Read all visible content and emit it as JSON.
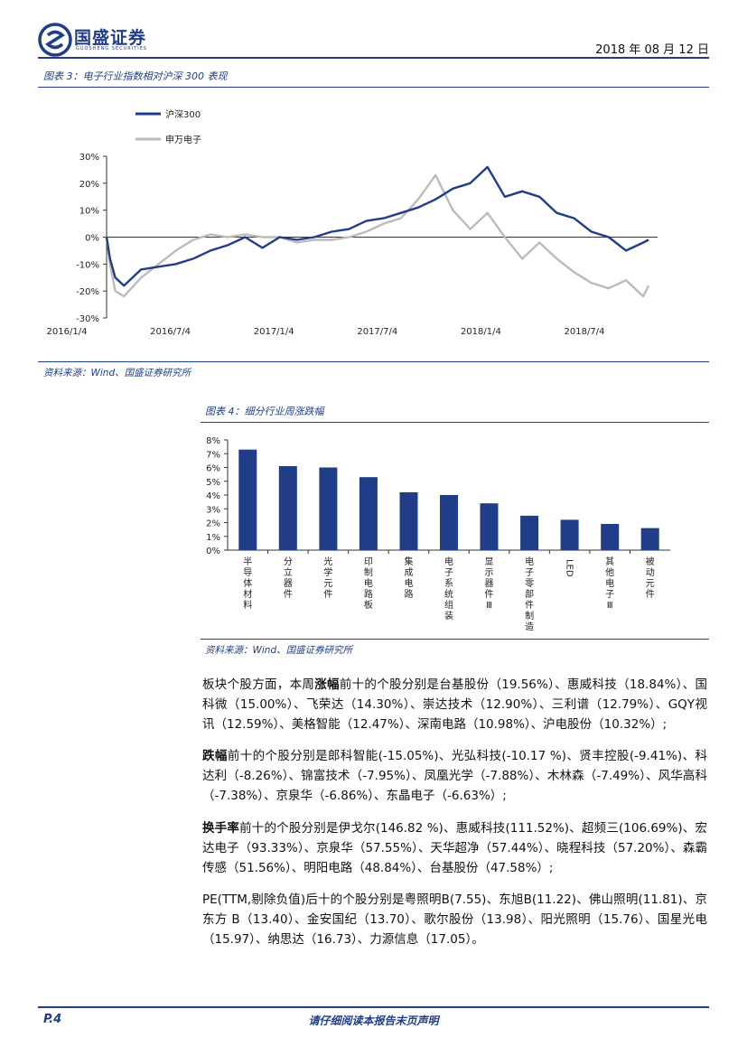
{
  "header": {
    "brand": "国盛证券",
    "brand_sub": "GUOSHENG SECURITIES",
    "date": "2018 年 08 月 12 日"
  },
  "figure3": {
    "caption": "图表 3：电子行业指数相对沪深 300 表现",
    "source": "资料来源：Wind、国盛证券研究所"
  },
  "figure4": {
    "caption": "图表 4：细分行业周涨跌幅",
    "source": "资料来源：Wind、国盛证券研究所"
  },
  "chart_data": [
    {
      "type": "line",
      "title": "",
      "legend": [
        "沪深300",
        "申万电子"
      ],
      "legend_position": "top-left",
      "x_ticks": [
        "2016/1/4",
        "2016/7/4",
        "2017/1/4",
        "2017/7/4",
        "2018/1/4",
        "2018/7/4"
      ],
      "y_ticks": [
        "30%",
        "20%",
        "10%",
        "0%",
        "-10%",
        "-20%",
        "-30%"
      ],
      "ylim": [
        -30,
        30
      ],
      "series": [
        {
          "name": "沪深300",
          "color": "#1f3d88",
          "x": [
            0,
            0.2,
            0.5,
            1,
            2,
            3,
            4,
            5,
            6,
            7,
            8,
            9,
            10,
            11,
            12,
            13,
            14,
            15,
            16,
            17,
            18,
            19,
            20,
            21,
            22,
            23,
            24,
            25,
            26,
            27,
            28,
            29,
            30,
            31,
            31.3
          ],
          "values": [
            0,
            -8,
            -15,
            -18,
            -12,
            -11,
            -10,
            -8,
            -5,
            -3,
            0,
            -4,
            0,
            -1,
            0,
            2,
            3,
            6,
            7,
            9,
            11,
            14,
            18,
            20,
            26,
            15,
            17,
            15,
            9,
            7,
            2,
            0,
            -5,
            -2,
            -1
          ]
        },
        {
          "name": "申万电子",
          "color": "#bbbbbb",
          "x": [
            0,
            0.2,
            0.5,
            1,
            2,
            3,
            4,
            5,
            6,
            7,
            8,
            9,
            10,
            11,
            12,
            13,
            14,
            15,
            16,
            17,
            18,
            19,
            20,
            21,
            22,
            23,
            24,
            25,
            26,
            27,
            28,
            29,
            30,
            31,
            31.3
          ],
          "values": [
            0,
            -10,
            -20,
            -22,
            -15,
            -10,
            -5,
            -1,
            1,
            0,
            1,
            0,
            0,
            -2,
            -1,
            -1,
            0,
            2,
            5,
            7,
            14,
            23,
            10,
            3,
            9,
            0,
            -8,
            -2,
            -8,
            -13,
            -17,
            -19,
            -16,
            -22,
            -18
          ]
        }
      ]
    },
    {
      "type": "bar",
      "title": "",
      "categories": [
        "半导体材料",
        "分立器件",
        "光学元件",
        "印制电路板",
        "集成电路",
        "电子系统组装",
        "显示器件Ⅲ",
        "电子零部件制造",
        "LED",
        "其他电子Ⅲ",
        "被动元件"
      ],
      "values": [
        7.3,
        6.1,
        6.0,
        5.3,
        4.2,
        4.0,
        3.4,
        2.5,
        2.2,
        1.9,
        1.6
      ],
      "y_ticks": [
        "8%",
        "7%",
        "6%",
        "5%",
        "4%",
        "3%",
        "2%",
        "1%",
        "0%"
      ],
      "ylim": [
        0,
        8
      ],
      "color": "#1f3d88"
    }
  ],
  "body": {
    "p1": {
      "pre": "板块个股方面，本周",
      "em": "涨幅",
      "post": "前十的个股分别是台基股份（19.56%）、惠威科技（18.84%）、国科微（15.00%）、飞荣达（14.30%）、崇达技术（12.90%）、三利谱（12.79%）、GQY视讯（12.59%）、美格智能（12.47%）、深南电路（10.98%）、沪电股份（10.32%）;"
    },
    "p2": {
      "em": "跌幅",
      "post": "前十的个股分别是郎科智能(-15.05%)、光弘科技(-10.17 %)、贤丰控股(-9.41%)、科达利（-8.26%）、锦富技术（-7.95%）、凤凰光学（-7.88%）、木林森（-7.49%）、风华高科（-7.38%）、京泉华（-6.86%）、东晶电子（-6.63%）;"
    },
    "p3": {
      "em": "换手率",
      "post": "前十的个股分别是伊戈尔(146.82 %)、惠威科技(111.52%)、超频三(106.69%)、宏达电子（93.33%）、京泉华（57.55%）、天华超净（57.44%）、晓程科技（57.20%）、森霸传感（51.56%）、明阳电路（48.84%）、台基股份（47.58%）;"
    },
    "p4": {
      "text": "PE(TTM,剔除负值)后十的个股分别是粤照明B(7.55)、东旭B(11.22)、佛山照明(11.81)、京东方 B（13.40）、金安国纪（13.70）、歌尔股份（13.98）、阳光照明（15.76）、国星光电（15.97）、纳思达（16.73）、力源信息（17.05）。"
    }
  },
  "footer": {
    "page": "P.4",
    "disclaimer": "请仔细阅读本报告末页声明"
  }
}
